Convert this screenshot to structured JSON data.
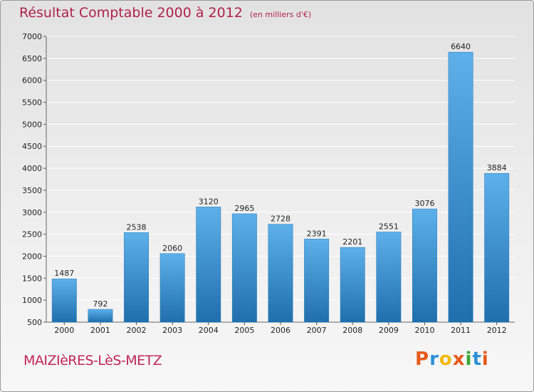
{
  "header": {
    "title": "Résultat Comptable 2000 à 2012",
    "subtitle": "(en milliers d'€)"
  },
  "footer": {
    "place": "MAIZIèRES-LèS-METZ",
    "logo": "Proxiti",
    "logo_colors": [
      "#e8581b",
      "#2a8fd6",
      "#f2b90f",
      "#e8581b",
      "#3aa636",
      "#2a8fd6",
      "#e8581b"
    ]
  },
  "colors": {
    "bar_top": "#5db0ea",
    "bar_bottom": "#1f6fad",
    "grid": "#ffffff"
  },
  "chart_data": {
    "type": "bar",
    "title": "Résultat Comptable 2000 à 2012",
    "subtitle": "(en milliers d'€)",
    "categories": [
      "2000",
      "2001",
      "2002",
      "2003",
      "2004",
      "2005",
      "2006",
      "2007",
      "2008",
      "2009",
      "2010",
      "2011",
      "2012"
    ],
    "values": [
      1487,
      792,
      2538,
      2060,
      3120,
      2965,
      2728,
      2391,
      2201,
      2551,
      3076,
      6640,
      3884
    ],
    "ylim": [
      500,
      7000
    ],
    "yticks": [
      500,
      1000,
      1500,
      2000,
      2500,
      3000,
      3500,
      4000,
      4500,
      5000,
      5500,
      6000,
      6500,
      7000
    ],
    "grid": true,
    "xlabel": "",
    "ylabel": ""
  }
}
